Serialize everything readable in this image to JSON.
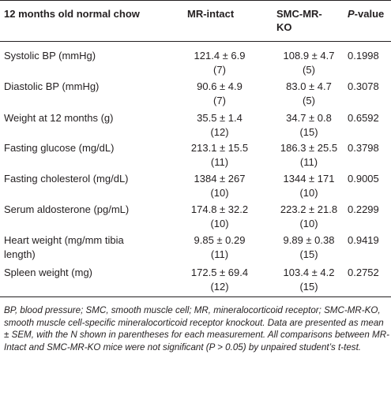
{
  "table": {
    "headers": {
      "label": "12 months old normal chow",
      "col1": "MR-intact",
      "col2_line1": "SMC-MR-",
      "col2_line2": "KO",
      "pvalue_p": "P",
      "pvalue_rest": "-value"
    },
    "rows": [
      {
        "label_line1": "Systolic BP (mmHg)",
        "label_line2": "",
        "mr_mean": "121.4 ± 6.9",
        "mr_n": "(7)",
        "ko_mean": "108.9 ± 4.7",
        "ko_n": "(5)",
        "p": "0.1998"
      },
      {
        "label_line1": "Diastolic BP (mmHg)",
        "label_line2": "",
        "mr_mean": "90.6 ± 4.9",
        "mr_n": "(7)",
        "ko_mean": "83.0 ± 4.7",
        "ko_n": "(5)",
        "p": "0.3078"
      },
      {
        "label_line1": "Weight at 12 months (g)",
        "label_line2": "",
        "mr_mean": "35.5 ± 1.4",
        "mr_n": "(12)",
        "ko_mean": "34.7 ± 0.8",
        "ko_n": "(15)",
        "p": "0.6592"
      },
      {
        "label_line1": "Fasting glucose (mg/dL)",
        "label_line2": "",
        "mr_mean": "213.1 ± 15.5",
        "mr_n": "(11)",
        "ko_mean": "186.3 ± 25.5",
        "ko_n": "(11)",
        "p": "0.3798"
      },
      {
        "label_line1": "Fasting cholesterol (mg/dL)",
        "label_line2": "",
        "mr_mean": "1384 ± 267",
        "mr_n": "(10)",
        "ko_mean": "1344 ± 171",
        "ko_n": "(10)",
        "p": "0.9005"
      },
      {
        "label_line1": "Serum aldosterone (pg/mL)",
        "label_line2": "",
        "mr_mean": "174.8 ± 32.2",
        "mr_n": "(10)",
        "ko_mean": "223.2 ± 21.8",
        "ko_n": "(10)",
        "p": "0.2299"
      },
      {
        "label_line1": "Heart weight (mg/mm tibia",
        "label_line2": "length)",
        "mr_mean": "9.85 ± 0.29",
        "mr_n": "(11)",
        "ko_mean": "9.89 ± 0.38",
        "ko_n": "(15)",
        "p": "0.9419"
      },
      {
        "label_line1": "Spleen weight (mg)",
        "label_line2": "",
        "mr_mean": "172.5 ± 69.4",
        "mr_n": "(12)",
        "ko_mean": "103.4 ± 4.2",
        "ko_n": "(15)",
        "p": "0.2752"
      }
    ]
  },
  "footnote": "BP, blood pressure; SMC, smooth muscle cell; MR, mineralocorticoid receptor; SMC-MR-KO, smooth muscle cell-specific mineralocorticoid receptor knockout. Data are presented as mean ± SEM, with the N shown in parentheses for each measurement. All comparisons between MR-Intact and SMC-MR-KO mice were not significant (P > 0.05) by unpaired student’s t-test."
}
